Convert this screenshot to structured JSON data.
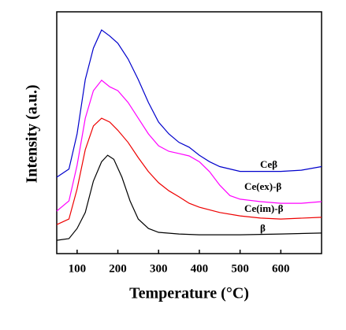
{
  "chart_data": {
    "type": "line",
    "xlabel": "Temperature (°C)",
    "ylabel": "Intensity (a.u.)",
    "xlim": [
      50,
      700
    ],
    "xticks": [
      100,
      200,
      300,
      400,
      500,
      600
    ],
    "ylim": [
      0,
      100
    ],
    "series": [
      {
        "name": "Ceβ",
        "color": "#0000cc",
        "x": [
          50,
          80,
          100,
          120,
          140,
          160,
          180,
          200,
          225,
          250,
          275,
          300,
          325,
          350,
          375,
          400,
          425,
          450,
          500,
          550,
          600,
          650,
          700
        ],
        "values": [
          31.6,
          35,
          49.5,
          72,
          85,
          92.5,
          90,
          87,
          80.5,
          72,
          62.5,
          54.4,
          49.5,
          46,
          44,
          40.7,
          38,
          36,
          34,
          34,
          34,
          34.5,
          36
        ]
      },
      {
        "name": "Ce(ex)-β",
        "color": "#ff00ff",
        "x": [
          50,
          80,
          100,
          120,
          140,
          160,
          180,
          200,
          225,
          250,
          275,
          300,
          325,
          350,
          375,
          400,
          425,
          450,
          475,
          500,
          550,
          600,
          650,
          700
        ],
        "values": [
          17.6,
          21.8,
          36.5,
          56,
          67.4,
          71.7,
          69,
          67.4,
          62.5,
          56,
          49.5,
          44.6,
          42.3,
          41.4,
          40.4,
          38,
          33.9,
          28.3,
          24,
          22.5,
          21.5,
          20.8,
          20.8,
          21.5
        ]
      },
      {
        "name": "Ce(im)-β",
        "color": "#ee0000",
        "x": [
          50,
          80,
          100,
          120,
          140,
          160,
          180,
          200,
          225,
          250,
          275,
          300,
          325,
          350,
          375,
          400,
          450,
          500,
          550,
          600,
          700
        ],
        "values": [
          12,
          14.3,
          26.7,
          43,
          52.8,
          56,
          54.4,
          51,
          46,
          39.7,
          33.9,
          29.3,
          26,
          23.5,
          20.8,
          19.2,
          17,
          15.6,
          14.7,
          14.3,
          15
        ]
      },
      {
        "name": "β",
        "color": "#000000",
        "x": [
          50,
          80,
          100,
          120,
          140,
          160,
          175,
          190,
          210,
          230,
          250,
          275,
          300,
          350,
          400,
          500,
          600,
          700
        ],
        "values": [
          5.5,
          6.2,
          10.4,
          17,
          30,
          38,
          40.7,
          39,
          31.6,
          21.8,
          14.3,
          10.4,
          8.8,
          8.1,
          7.8,
          7.8,
          8.1,
          8.5
        ]
      }
    ]
  }
}
